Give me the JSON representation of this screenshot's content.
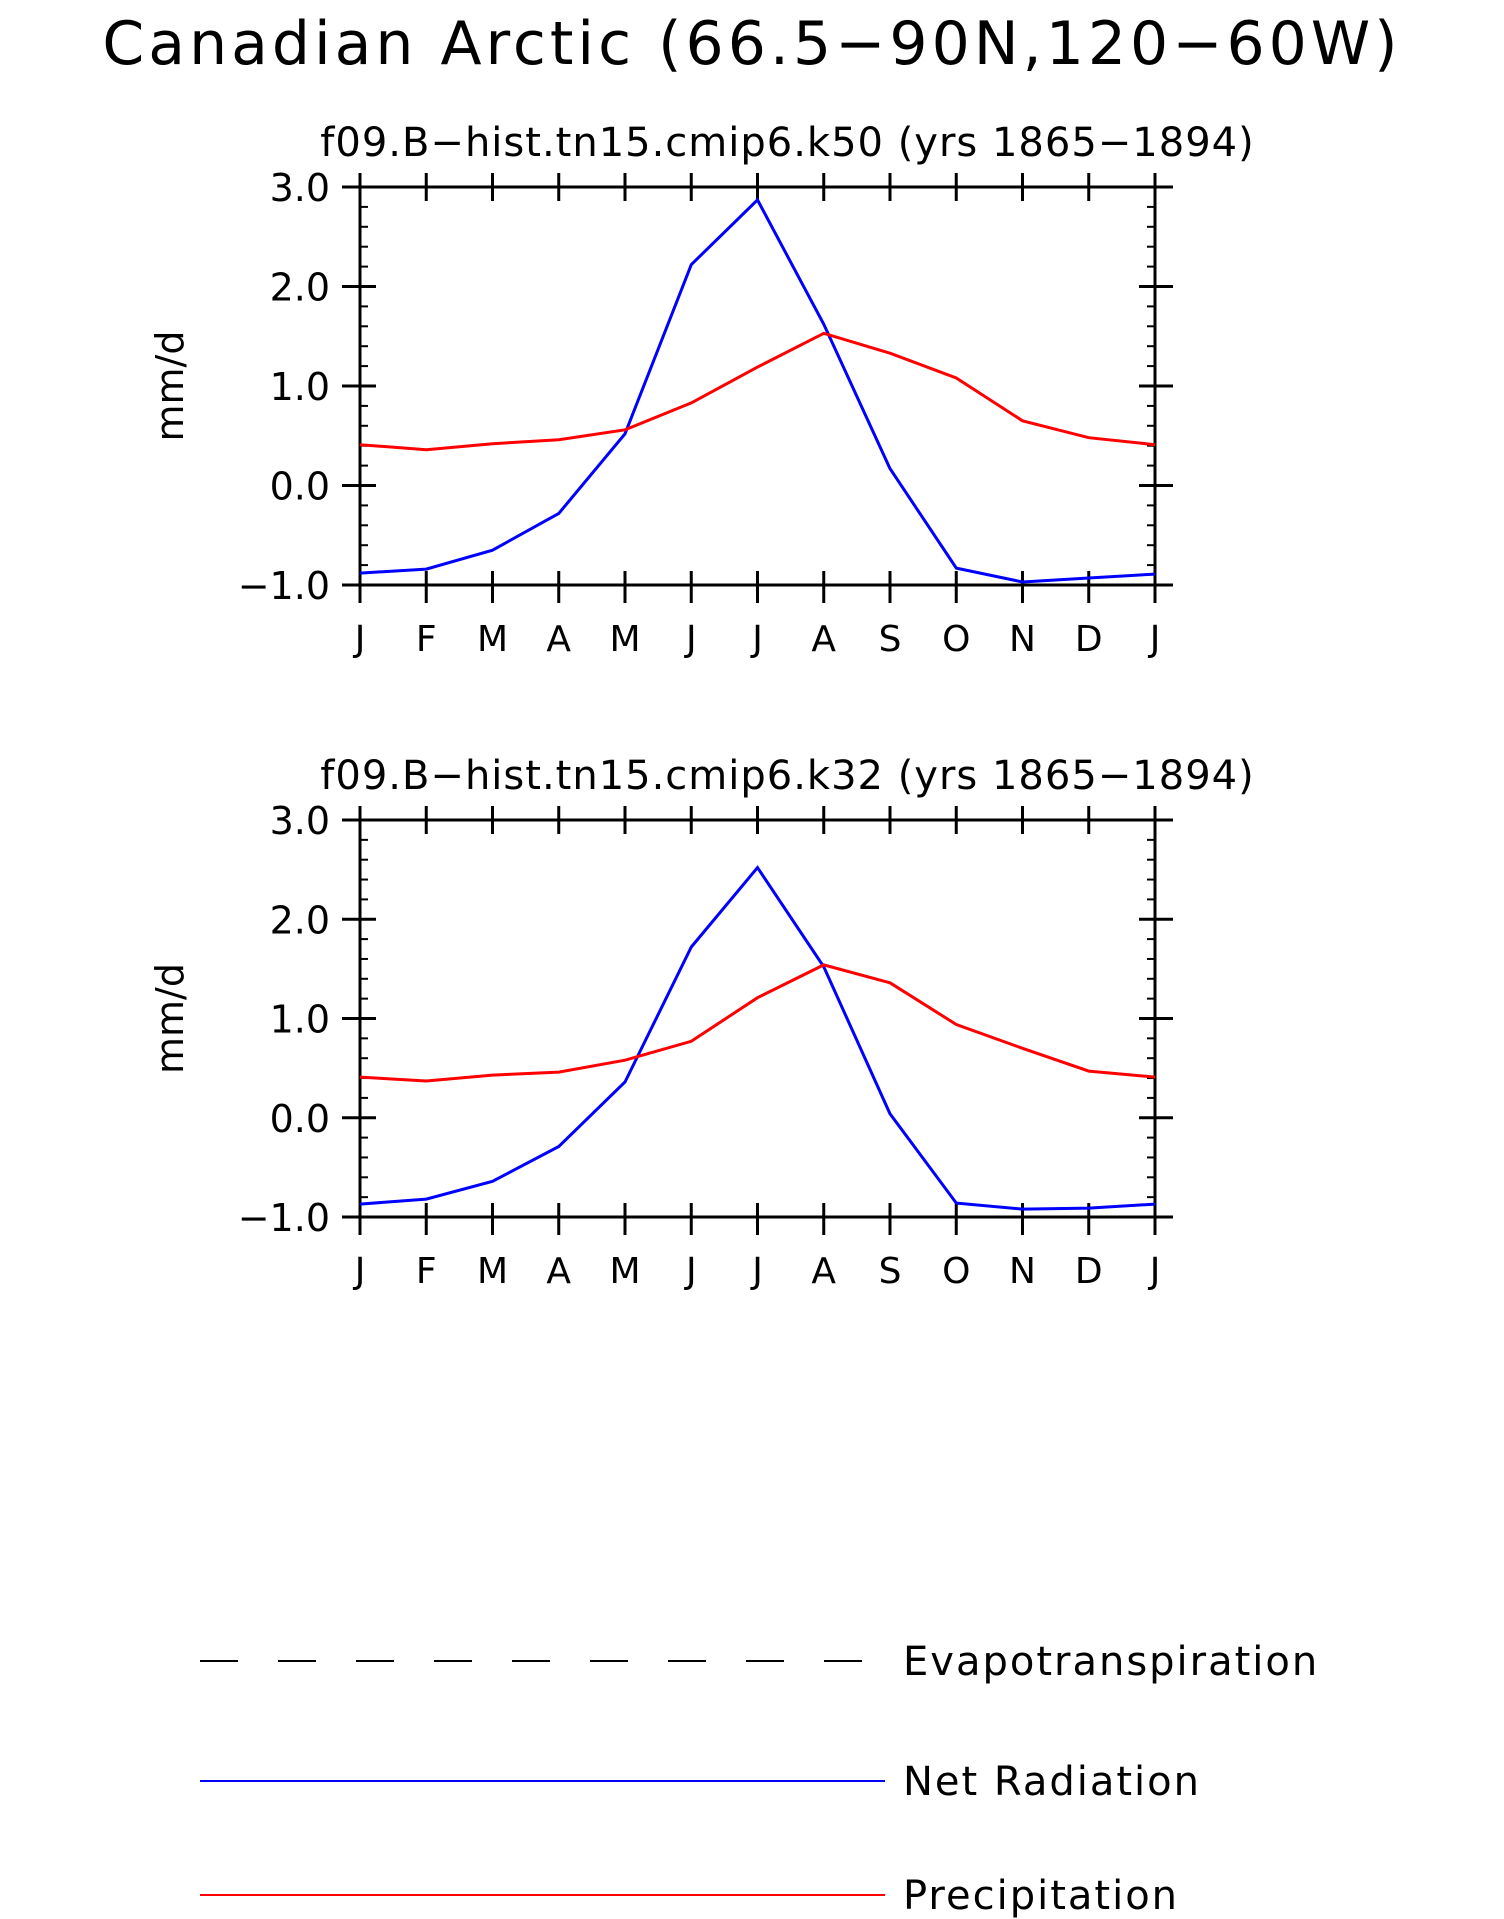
{
  "title": "Canadian Arctic (66.5−90N,120−60W)",
  "colors": {
    "net_radiation": "#0000ff",
    "precipitation": "#ff0000",
    "evapotranspiration": "#000000",
    "axes": "#000000"
  },
  "chart_data": [
    {
      "type": "line",
      "title": "f09.B−hist.tn15.cmip6.k50 (yrs 1865−1894)",
      "ylabel": "mm/d",
      "xlabel": "",
      "categories": [
        "J",
        "F",
        "M",
        "A",
        "M",
        "J",
        "J",
        "A",
        "S",
        "O",
        "N",
        "D",
        "J"
      ],
      "yticks": [
        "3.0",
        "2.0",
        "1.0",
        "0.0",
        "−1.0"
      ],
      "ytick_values": [
        3,
        2,
        1,
        0,
        -1
      ],
      "ylim": [
        -1,
        3
      ],
      "grid": false,
      "series": [
        {
          "name": "Net Radiation",
          "color": "#0000ff",
          "values": [
            -0.88,
            -0.84,
            -0.65,
            -0.28,
            0.52,
            2.22,
            2.87,
            1.62,
            0.17,
            -0.83,
            -0.97,
            -0.93,
            -0.89
          ]
        },
        {
          "name": "Precipitation",
          "color": "#ff0000",
          "values": [
            0.41,
            0.36,
            0.42,
            0.46,
            0.56,
            0.83,
            1.19,
            1.53,
            1.33,
            1.08,
            0.65,
            0.48,
            0.41
          ]
        }
      ]
    },
    {
      "type": "line",
      "title": "f09.B−hist.tn15.cmip6.k32 (yrs 1865−1894)",
      "ylabel": "mm/d",
      "xlabel": "",
      "categories": [
        "J",
        "F",
        "M",
        "A",
        "M",
        "J",
        "J",
        "A",
        "S",
        "O",
        "N",
        "D",
        "J"
      ],
      "yticks": [
        "3.0",
        "2.0",
        "1.0",
        "0.0",
        "−1.0"
      ],
      "ytick_values": [
        3,
        2,
        1,
        0,
        -1
      ],
      "ylim": [
        -1,
        3
      ],
      "grid": false,
      "series": [
        {
          "name": "Net Radiation",
          "color": "#0000ff",
          "values": [
            -0.87,
            -0.82,
            -0.64,
            -0.29,
            0.36,
            1.72,
            2.52,
            1.52,
            0.04,
            -0.86,
            -0.92,
            -0.91,
            -0.87
          ]
        },
        {
          "name": "Precipitation",
          "color": "#ff0000",
          "values": [
            0.41,
            0.37,
            0.43,
            0.46,
            0.58,
            0.77,
            1.21,
            1.54,
            1.36,
            0.94,
            0.7,
            0.47,
            0.41
          ]
        }
      ]
    }
  ],
  "legend": [
    {
      "label": "Evapotranspiration",
      "color": "#000000",
      "style": "dashed"
    },
    {
      "label": "Net Radiation",
      "color": "#0000ff",
      "style": "solid"
    },
    {
      "label": "Precipitation",
      "color": "#ff0000",
      "style": "solid"
    }
  ]
}
